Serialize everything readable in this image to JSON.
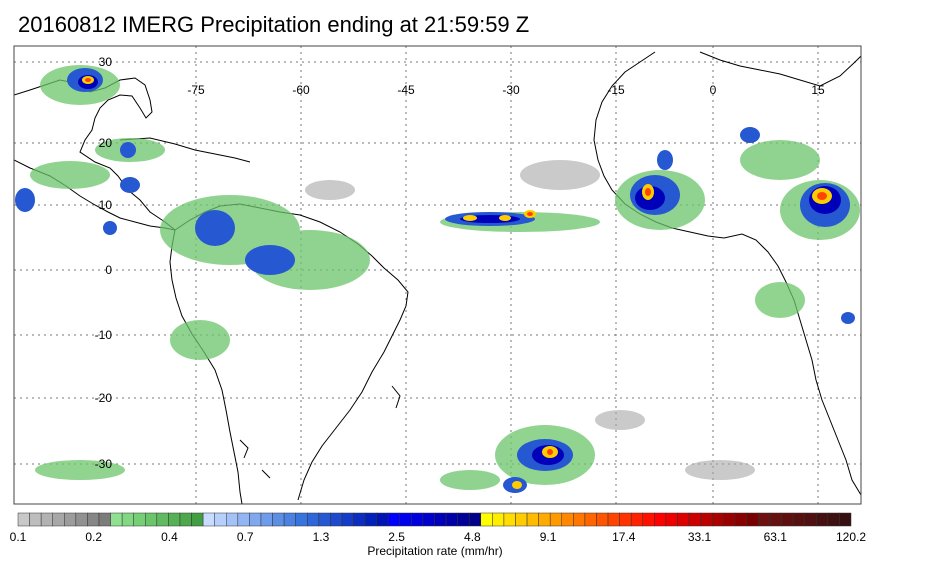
{
  "title": "20160812 IMERG Precipitation ending at 21:59:59 Z",
  "map": {
    "lon_labels": [
      "-75",
      "-60",
      "-45",
      "-30",
      "-15",
      "0",
      "15"
    ],
    "lat_labels": [
      "30",
      "20",
      "10",
      "0",
      "-10",
      "-20",
      "-30"
    ],
    "grid": true
  },
  "colorbar": {
    "label": "Precipitation rate (mm/hr)",
    "tick_labels": [
      "0.1",
      "0.2",
      "0.4",
      "0.7",
      "1.3",
      "2.5",
      "4.8",
      "9.1",
      "17.4",
      "33.1",
      "63.1",
      "120.2"
    ],
    "colors": [
      "#c8c8c8",
      "#bdbdbd",
      "#b2b2b2",
      "#a7a7a7",
      "#9c9c9c",
      "#919191",
      "#868686",
      "#7c7c7c",
      "#8fe08f",
      "#82d882",
      "#76cf76",
      "#6bc56b",
      "#60bb60",
      "#56b156",
      "#4ca84c",
      "#429e42",
      "#c8dcff",
      "#b6cffb",
      "#a4c2f7",
      "#92b5f3",
      "#80a8ef",
      "#6e9bea",
      "#5c8ee6",
      "#4a81e2",
      "#3874de",
      "#2f66d8",
      "#2658d2",
      "#1d4acc",
      "#143cc6",
      "#0b2ec0",
      "#0220ba",
      "#0014b4",
      "#0000ff",
      "#0000ee",
      "#0000dd",
      "#0000cc",
      "#0000bb",
      "#0000aa",
      "#000099",
      "#000088",
      "#ffff00",
      "#ffee00",
      "#ffdd00",
      "#ffcc00",
      "#ffbb00",
      "#ffaa00",
      "#ff9900",
      "#ff8800",
      "#ff7700",
      "#ff6600",
      "#ff5500",
      "#ff4400",
      "#ff3300",
      "#ff2200",
      "#ff1100",
      "#ff0000",
      "#ee0000",
      "#dd0000",
      "#cc0000",
      "#bb0000",
      "#aa0000",
      "#990000",
      "#880000",
      "#770000",
      "#6e1010",
      "#661010",
      "#5e1010",
      "#561010",
      "#4e1010",
      "#461010",
      "#3e1010",
      "#361010"
    ]
  }
}
